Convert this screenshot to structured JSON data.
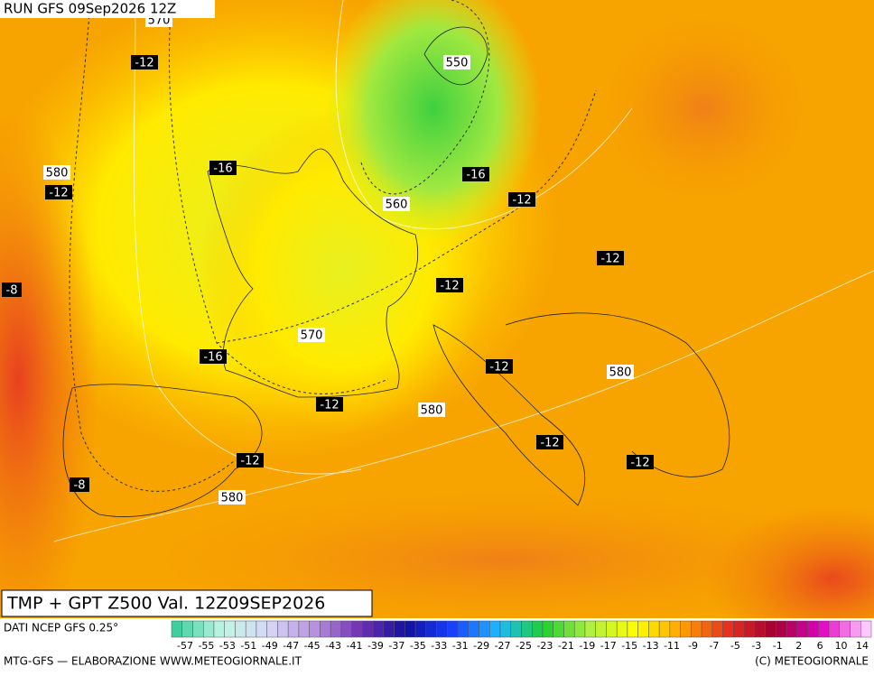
{
  "header": {
    "run": "RUN GFS 09Sep2026 12Z"
  },
  "map": {
    "labels": [
      "570",
      "-12",
      "580",
      "-12",
      "-16",
      "550",
      "560",
      "-16",
      "-12",
      "-8",
      "-12",
      "-12",
      "570",
      "-16",
      "-12",
      "580",
      "-12",
      "580",
      "-12",
      "-12",
      "-12",
      "-8",
      "580"
    ]
  },
  "title": "TMP + GPT Z500 Val. 12Z09SEP2026",
  "legend": {
    "source": "DATI NCEP GFS 0.25°",
    "labels": [
      "-57",
      "-55",
      "-53",
      "-51",
      "-49",
      "-47",
      "-45",
      "-43",
      "-41",
      "-39",
      "-37",
      "-35",
      "-33",
      "-31",
      "-29",
      "-27",
      "-25",
      "-23",
      "-21",
      "-19",
      "-17",
      "-15",
      "-13",
      "-11",
      "-9",
      "-7",
      "-5",
      "-3",
      "-1",
      "2",
      "6",
      "10",
      "14"
    ],
    "colors": [
      "#3fcf9f",
      "#bff5e5",
      "#d8d8f5",
      "#b890e0",
      "#7030b0",
      "#1010a0",
      "#1840ff",
      "#20b8ff",
      "#20d030",
      "#b0f040",
      "#ffff00",
      "#ffa000",
      "#e83020",
      "#a00030",
      "#e000c0",
      "#ffc8ff"
    ]
  },
  "footer": {
    "left": "MTG-GFS — ELABORAZIONE WWW.METEOGIORNALE.IT",
    "right": "(C) METEOGIORNALE"
  }
}
